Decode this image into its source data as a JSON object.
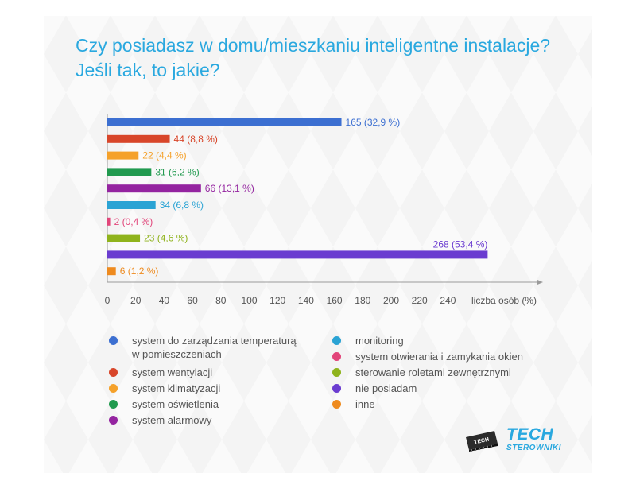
{
  "title_line1": "Czy posiadasz w domu/mieszkaniu inteligentne instalacje?",
  "title_line2": "Jeśli tak, to jakie?",
  "logo": {
    "main": "TECH",
    "sub": "STEROWNIKI",
    "chip_text": "TECH"
  },
  "chart_data": {
    "type": "bar",
    "orientation": "horizontal",
    "xlabel": "liczba osób (%)",
    "xlim": [
      0,
      300
    ],
    "xticks": [
      0,
      20,
      40,
      60,
      80,
      100,
      120,
      140,
      160,
      180,
      200,
      220,
      240
    ],
    "grid": false,
    "legend_position": "bottom",
    "categories": [
      "system do zarządzania temperaturą\nw pomieszczeniach",
      "system wentylacji",
      "system klimatyzacji",
      "system oświetlenia",
      "system alarmowy",
      "monitoring",
      "system  otwierania i zamykania okien",
      "sterowanie roletami zewnętrznymi",
      "nie posiadam",
      "inne"
    ],
    "values": [
      165,
      44,
      22,
      31,
      66,
      34,
      2,
      23,
      268,
      6
    ],
    "labels": [
      "165 (32,9 %)",
      "44 (8,8 %)",
      "22 (4,4 %)",
      "31 (6,2 %)",
      "66 (13,1 %)",
      "34 (6,8 %)",
      "2 (0,4 %)",
      "23 (4,6 %)",
      "268 (53,4 %)",
      "6 (1,2 %)"
    ],
    "colors": [
      "#3c6fd1",
      "#d8462a",
      "#f5a12a",
      "#219a4f",
      "#9424a0",
      "#2aa3d4",
      "#e2457a",
      "#8fb31c",
      "#6a3cd0",
      "#ee8a1e"
    ]
  }
}
